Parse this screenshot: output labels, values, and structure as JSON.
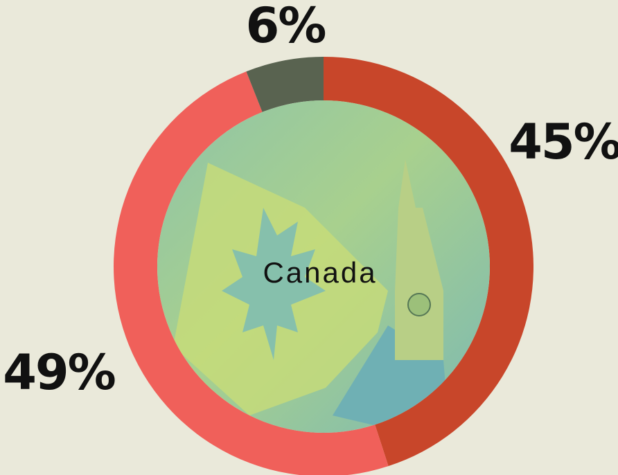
{
  "chart_data": {
    "type": "pie",
    "donut": true,
    "center_label": "Canada",
    "values": [
      45,
      49,
      6
    ],
    "value_labels": [
      "45%",
      "49%",
      "6%"
    ],
    "colors": [
      "#c8462a",
      "#f0605a",
      "#596350"
    ]
  }
}
